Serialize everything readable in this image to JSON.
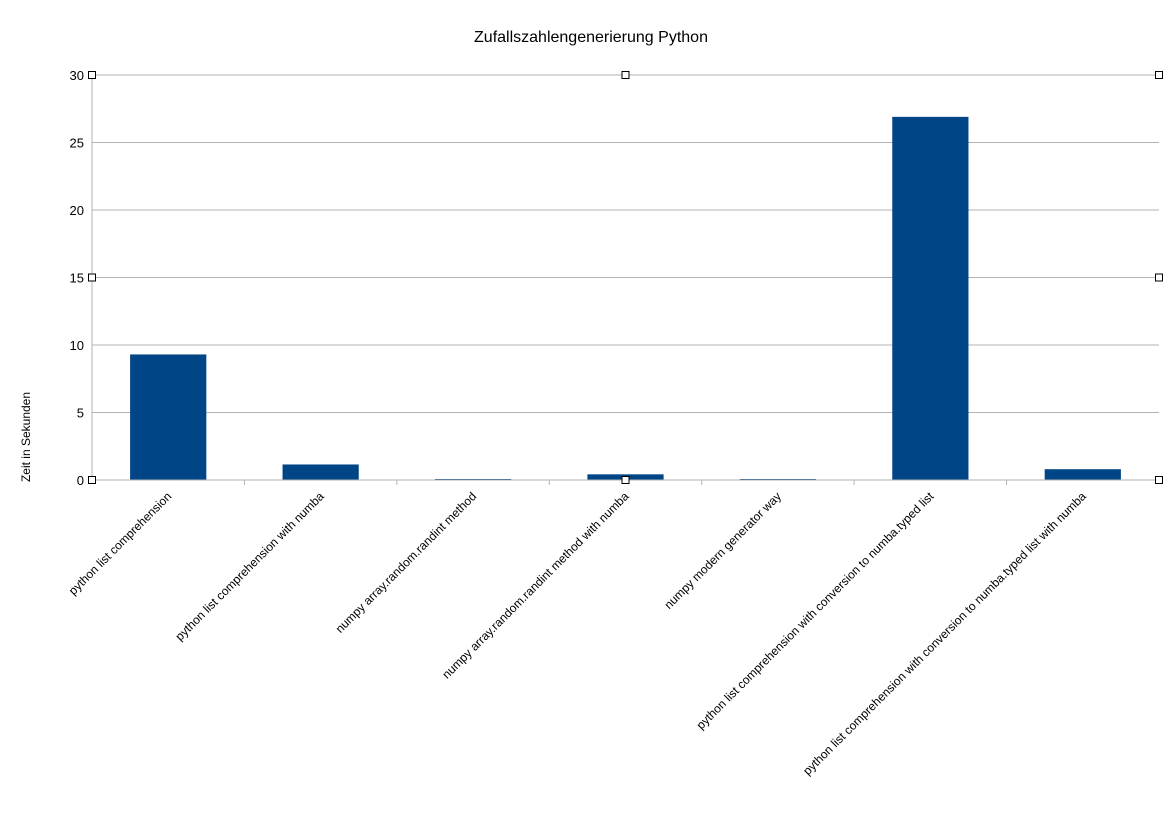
{
  "chart_data": {
    "type": "bar",
    "title": "Zufallszahlengenerierung Python",
    "xlabel": "",
    "ylabel": "Zeit in Sekunden",
    "ylim": [
      0,
      30
    ],
    "yticks": [
      0,
      5,
      10,
      15,
      20,
      25,
      30
    ],
    "categories": [
      "python list comprehension",
      "python list comprehension with numba",
      "numpy array.random.randint method",
      "numpy array.random.randint method with numba",
      "numpy modern generator way",
      "python list comprehension with conversion to numba.typed list",
      "python list comprehension with conversion to numba.typed list with numba"
    ],
    "values": [
      9.3,
      1.15,
      0.05,
      0.42,
      0.05,
      26.9,
      0.8
    ],
    "grid": true,
    "legend": "none",
    "colors": {
      "bar": "#004586",
      "grid": "#b3b3b3",
      "axis": "#b3b3b3",
      "handle_fill": "#ffffff",
      "handle_stroke": "#000000"
    }
  }
}
